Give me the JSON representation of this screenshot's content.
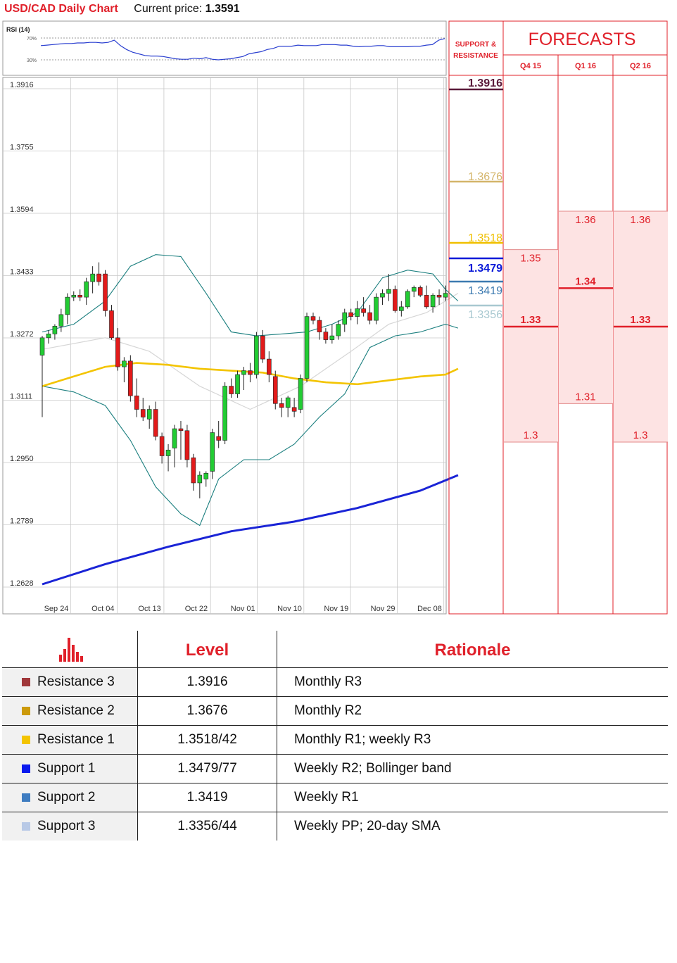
{
  "header": {
    "pair_title": "USD/CAD Daily Chart",
    "price_label": "Current price:",
    "price_value": "1.3591"
  },
  "rsi": {
    "title": "RSI (14)",
    "upper_label": "70%",
    "lower_label": "30%",
    "values": [
      56,
      57,
      58,
      59,
      60,
      60,
      61,
      61,
      62,
      62,
      61,
      62,
      66,
      56,
      49,
      44,
      41,
      38,
      37,
      37,
      36,
      34,
      32,
      31,
      31,
      33,
      32,
      34,
      31,
      30,
      31,
      32,
      34,
      36,
      41,
      43,
      45,
      49,
      51,
      55,
      55,
      55,
      57,
      56,
      56,
      56,
      58,
      58,
      58,
      57,
      57,
      55,
      54,
      55,
      55,
      56,
      56,
      54,
      54,
      54,
      54,
      55,
      55,
      57,
      58,
      66,
      69
    ]
  },
  "chart_data": {
    "type": "candlestick",
    "ytick_labels": [
      "1.3916",
      "1.3755",
      "1.3594",
      "1.3433",
      "1.3272",
      "1.3111",
      "1.2950",
      "1.2789",
      "1.2628"
    ],
    "yticks": [
      1.3916,
      1.3755,
      1.3594,
      1.3433,
      1.3272,
      1.3111,
      1.295,
      1.2789,
      1.2628
    ],
    "ylim": [
      1.2618,
      1.3916
    ],
    "xtick_labels": [
      "Sep 24",
      "Oct 04",
      "Oct 13",
      "Oct 22",
      "Nov 01",
      "Nov 10",
      "Nov 19",
      "Nov 29",
      "Dec 08"
    ],
    "xtick_index": [
      3,
      13,
      23,
      33,
      43,
      53,
      63,
      73,
      83
    ],
    "candles": [
      [
        1.322,
        1.327,
        1.306,
        1.3265
      ],
      [
        1.3265,
        1.3285,
        1.325,
        1.3275
      ],
      [
        1.3275,
        1.33,
        1.326,
        1.3295
      ],
      [
        1.3295,
        1.334,
        1.328,
        1.3325
      ],
      [
        1.3325,
        1.338,
        1.33,
        1.337
      ],
      [
        1.337,
        1.3385,
        1.336,
        1.3375
      ],
      [
        1.3375,
        1.339,
        1.336,
        1.337
      ],
      [
        1.337,
        1.342,
        1.335,
        1.341
      ],
      [
        1.341,
        1.345,
        1.338,
        1.343
      ],
      [
        1.343,
        1.346,
        1.34,
        1.341
      ],
      [
        1.343,
        1.344,
        1.332,
        1.3335
      ],
      [
        1.3335,
        1.335,
        1.326,
        1.3265
      ],
      [
        1.3265,
        1.329,
        1.318,
        1.319
      ],
      [
        1.319,
        1.3215,
        1.315,
        1.3205
      ],
      [
        1.3205,
        1.322,
        1.31,
        1.3115
      ],
      [
        1.3115,
        1.316,
        1.306,
        1.308
      ],
      [
        1.308,
        1.311,
        1.305,
        1.306
      ],
      [
        1.3055,
        1.309,
        1.303,
        1.308
      ],
      [
        1.308,
        1.31,
        1.3,
        1.301
      ],
      [
        1.301,
        1.302,
        1.294,
        1.296
      ],
      [
        1.296,
        1.299,
        1.292,
        1.2975
      ],
      [
        1.298,
        1.304,
        1.293,
        1.303
      ],
      [
        1.303,
        1.305,
        1.295,
        1.3025
      ],
      [
        1.3025,
        1.304,
        1.293,
        1.295
      ],
      [
        1.2955,
        1.2965,
        1.287,
        1.289
      ],
      [
        1.289,
        1.292,
        1.285,
        1.291
      ],
      [
        1.29,
        1.292,
        1.288,
        1.2915
      ],
      [
        1.292,
        1.303,
        1.29,
        1.302
      ],
      [
        1.301,
        1.305,
        1.298,
        1.3
      ],
      [
        1.3,
        1.315,
        1.299,
        1.314
      ],
      [
        1.314,
        1.316,
        1.311,
        1.312
      ],
      [
        1.312,
        1.318,
        1.311,
        1.317
      ],
      [
        1.317,
        1.319,
        1.313,
        1.318
      ],
      [
        1.318,
        1.32,
        1.315,
        1.317
      ],
      [
        1.317,
        1.328,
        1.316,
        1.327
      ],
      [
        1.327,
        1.3285,
        1.32,
        1.321
      ],
      [
        1.321,
        1.323,
        1.315,
        1.317
      ],
      [
        1.3165,
        1.318,
        1.308,
        1.3095
      ],
      [
        1.3095,
        1.311,
        1.306,
        1.3085
      ],
      [
        1.3085,
        1.3115,
        1.306,
        1.311
      ],
      [
        1.3085,
        1.311,
        1.306,
        1.3075
      ],
      [
        1.308,
        1.317,
        1.307,
        1.316
      ],
      [
        1.316,
        1.333,
        1.315,
        1.332
      ],
      [
        1.332,
        1.333,
        1.33,
        1.331
      ],
      [
        1.331,
        1.332,
        1.326,
        1.328
      ],
      [
        1.328,
        1.329,
        1.325,
        1.326
      ],
      [
        1.326,
        1.33,
        1.325,
        1.327
      ],
      [
        1.327,
        1.331,
        1.326,
        1.33
      ],
      [
        1.33,
        1.334,
        1.328,
        1.333
      ],
      [
        1.333,
        1.334,
        1.331,
        1.332
      ],
      [
        1.332,
        1.336,
        1.33,
        1.334
      ],
      [
        1.334,
        1.337,
        1.332,
        1.333
      ],
      [
        1.333,
        1.335,
        1.33,
        1.331
      ],
      [
        1.331,
        1.338,
        1.33,
        1.337
      ],
      [
        1.337,
        1.339,
        1.335,
        1.338
      ],
      [
        1.338,
        1.343,
        1.336,
        1.339
      ],
      [
        1.339,
        1.34,
        1.333,
        1.3335
      ],
      [
        1.3335,
        1.336,
        1.332,
        1.3345
      ],
      [
        1.3345,
        1.339,
        1.334,
        1.3385
      ],
      [
        1.3385,
        1.34,
        1.337,
        1.3395
      ],
      [
        1.3395,
        1.34,
        1.337,
        1.3375
      ],
      [
        1.3375,
        1.34,
        1.334,
        1.3345
      ],
      [
        1.3345,
        1.338,
        1.333,
        1.3375
      ],
      [
        1.3375,
        1.339,
        1.335,
        1.337
      ],
      [
        1.337,
        1.34,
        1.336,
        1.338
      ]
    ],
    "sma20": [
      [
        0,
        1.3235
      ],
      [
        10,
        1.3265
      ],
      [
        17,
        1.323
      ],
      [
        25,
        1.314
      ],
      [
        33,
        1.308
      ],
      [
        41,
        1.314
      ],
      [
        49,
        1.323
      ],
      [
        55,
        1.33
      ],
      [
        61,
        1.333
      ],
      [
        66,
        1.338
      ]
    ],
    "sma50": [
      [
        0,
        1.314
      ],
      [
        5,
        1.3165
      ],
      [
        10,
        1.319
      ],
      [
        15,
        1.32
      ],
      [
        20,
        1.3195
      ],
      [
        25,
        1.3185
      ],
      [
        30,
        1.318
      ],
      [
        35,
        1.3175
      ],
      [
        40,
        1.316
      ],
      [
        45,
        1.315
      ],
      [
        50,
        1.3145
      ],
      [
        55,
        1.3155
      ],
      [
        60,
        1.3165
      ],
      [
        64,
        1.317
      ],
      [
        66,
        1.3185
      ]
    ],
    "sma200": [
      [
        0,
        1.2628
      ],
      [
        10,
        1.268
      ],
      [
        20,
        1.2725
      ],
      [
        30,
        1.2765
      ],
      [
        40,
        1.279
      ],
      [
        50,
        1.2825
      ],
      [
        60,
        1.287
      ],
      [
        66,
        1.291
      ]
    ],
    "boll_upper": [
      [
        0,
        1.328
      ],
      [
        5,
        1.33
      ],
      [
        10,
        1.336
      ],
      [
        14,
        1.345
      ],
      [
        18,
        1.348
      ],
      [
        22,
        1.3475
      ],
      [
        26,
        1.338
      ],
      [
        30,
        1.328
      ],
      [
        34,
        1.327
      ],
      [
        38,
        1.3275
      ],
      [
        42,
        1.328
      ],
      [
        46,
        1.33
      ],
      [
        50,
        1.333
      ],
      [
        54,
        1.342
      ],
      [
        58,
        1.344
      ],
      [
        62,
        1.343
      ],
      [
        64,
        1.339
      ],
      [
        66,
        1.336
      ]
    ],
    "boll_lower": [
      [
        0,
        1.314
      ],
      [
        5,
        1.3125
      ],
      [
        10,
        1.309
      ],
      [
        14,
        1.3
      ],
      [
        18,
        1.288
      ],
      [
        22,
        1.281
      ],
      [
        25,
        1.278
      ],
      [
        28,
        1.29
      ],
      [
        32,
        1.295
      ],
      [
        36,
        1.295
      ],
      [
        40,
        1.299
      ],
      [
        44,
        1.306
      ],
      [
        48,
        1.312
      ],
      [
        52,
        1.324
      ],
      [
        56,
        1.327
      ],
      [
        60,
        1.328
      ],
      [
        64,
        1.33
      ],
      [
        66,
        1.329
      ]
    ],
    "bars_shown_as_index": true
  },
  "sr_panel": {
    "title": "SUPPORT & RESISTANCE",
    "levels": [
      "1.3916",
      "1.3676",
      "1.3518",
      "1.3479",
      "1.3419",
      "1.3356"
    ],
    "level_values": [
      1.3916,
      1.3676,
      1.3518,
      1.3479,
      1.3419,
      1.3356
    ],
    "level_colors": [
      "#5a1a3a",
      "#d4b56a",
      "#f0c000",
      "#0a1ad8",
      "#3c7ab0",
      "#a8c8d0"
    ]
  },
  "forecasts": {
    "title": "FORECASTS",
    "columns": [
      {
        "label": "Q4 15",
        "high": "1.35",
        "median": "1.33",
        "low": "1.3",
        "high_v": 1.35,
        "median_v": 1.33,
        "low_v": 1.3
      },
      {
        "label": "Q1 16",
        "high": "1.36",
        "median": "1.34",
        "low": "1.31",
        "high_v": 1.36,
        "median_v": 1.34,
        "low_v": 1.31
      },
      {
        "label": "Q2 16",
        "high": "1.36",
        "median": "1.33",
        "low": "1.3",
        "high_v": 1.36,
        "median_v": 1.33,
        "low_v": 1.3
      }
    ]
  },
  "table": {
    "headers": {
      "level": "Level",
      "rationale": "Rationale"
    },
    "rows": [
      {
        "name": "Resistance 3",
        "level": "1.3916",
        "rationale": "Monthly R3",
        "color": "#a0373a"
      },
      {
        "name": "Resistance 2",
        "level": "1.3676",
        "rationale": "Monthly R2",
        "color": "#cc9a0a"
      },
      {
        "name": "Resistance 1",
        "level": "1.3518/42",
        "rationale": "Monthly R1; weekly R3",
        "color": "#f3c400"
      },
      {
        "name": "Support 1",
        "level": "1.3479/77",
        "rationale": "Weekly R2; Bollinger band",
        "color": "#0a1aee"
      },
      {
        "name": "Support 2",
        "level": "1.3419",
        "rationale": "Weekly R1",
        "color": "#3e7cc0"
      },
      {
        "name": "Support 3",
        "level": "1.3356/44",
        "rationale": "Weekly PP; 20-day SMA",
        "color": "#b8c9e6"
      }
    ]
  }
}
